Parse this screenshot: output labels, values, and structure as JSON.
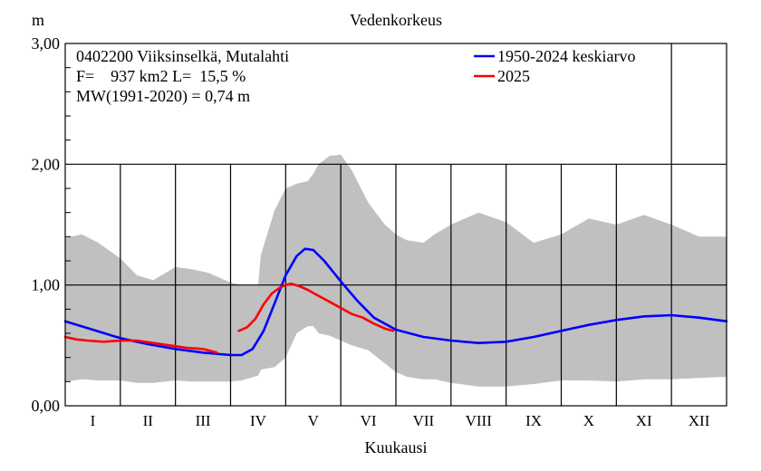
{
  "chart_data": {
    "type": "line",
    "title": "Vedenkorkeus",
    "xlabel": "Kuukausi",
    "ylabel": "m",
    "ylim": [
      0,
      3
    ],
    "y_ticks": [
      "0,00",
      "1,00",
      "2,00",
      "3,00"
    ],
    "y_tick_values": [
      0,
      1,
      2,
      3
    ],
    "months": [
      "I",
      "II",
      "III",
      "IV",
      "V",
      "VI",
      "VII",
      "VIII",
      "IX",
      "X",
      "XI",
      "XII"
    ],
    "xlim": [
      0,
      12
    ],
    "grid": true,
    "legend_position": "top-right",
    "info_lines": [
      "0402200 Viiksinselkä, Mutalahti",
      "F=    937 km2 L=  15,5 %",
      "MW(1991-2020) = 0,74 m"
    ],
    "colors": {
      "range_band": "#c0c0c0",
      "mean_line": "#0000ff",
      "current_line": "#ff0000",
      "frame": "#000000"
    },
    "range_band": {
      "x": [
        0,
        0.3,
        0.6,
        1.0,
        1.3,
        1.6,
        2.0,
        2.3,
        2.6,
        3.0,
        3.2,
        3.5,
        3.55,
        3.8,
        4.0,
        4.2,
        4.4,
        4.5,
        4.6,
        4.8,
        5.0,
        5.2,
        5.5,
        5.8,
        6.0,
        6.2,
        6.5,
        6.7,
        7.0,
        7.5,
        8.0,
        8.5,
        9.0,
        9.5,
        10.0,
        10.5,
        11.0,
        11.5,
        12.0
      ],
      "upper": [
        1.39,
        1.42,
        1.35,
        1.22,
        1.08,
        1.04,
        1.15,
        1.13,
        1.1,
        1.02,
        1.0,
        1.0,
        1.25,
        1.62,
        1.8,
        1.84,
        1.86,
        1.92,
        2.0,
        2.07,
        2.08,
        1.95,
        1.68,
        1.5,
        1.42,
        1.37,
        1.35,
        1.42,
        1.5,
        1.6,
        1.52,
        1.35,
        1.42,
        1.55,
        1.5,
        1.58,
        1.5,
        1.4,
        1.4
      ],
      "lower": [
        0.2,
        0.22,
        0.21,
        0.21,
        0.19,
        0.19,
        0.21,
        0.2,
        0.2,
        0.2,
        0.21,
        0.25,
        0.3,
        0.32,
        0.4,
        0.6,
        0.66,
        0.66,
        0.6,
        0.58,
        0.54,
        0.5,
        0.46,
        0.35,
        0.28,
        0.24,
        0.22,
        0.22,
        0.19,
        0.16,
        0.16,
        0.18,
        0.21,
        0.21,
        0.2,
        0.22,
        0.22,
        0.23,
        0.24
      ]
    },
    "series": [
      {
        "name": "1950-2024 keskiarvo",
        "color": "#0000ff",
        "x": [
          0,
          0.5,
          1.0,
          1.5,
          2.0,
          2.5,
          3.0,
          3.2,
          3.4,
          3.6,
          3.8,
          4.0,
          4.2,
          4.35,
          4.5,
          4.7,
          5.0,
          5.3,
          5.6,
          6.0,
          6.5,
          7.0,
          7.5,
          8.0,
          8.5,
          9.0,
          9.5,
          10.0,
          10.5,
          11.0,
          11.5,
          12.0
        ],
        "y": [
          0.7,
          0.63,
          0.56,
          0.51,
          0.47,
          0.44,
          0.42,
          0.42,
          0.47,
          0.62,
          0.85,
          1.08,
          1.24,
          1.3,
          1.29,
          1.2,
          1.03,
          0.87,
          0.73,
          0.63,
          0.57,
          0.54,
          0.52,
          0.53,
          0.57,
          0.62,
          0.67,
          0.71,
          0.74,
          0.75,
          0.73,
          0.7
        ]
      },
      {
        "name": "2025",
        "color": "#ff0000",
        "x": [
          0,
          0.2,
          0.4,
          0.7,
          1.0,
          1.3,
          1.6,
          1.9,
          2.2,
          2.5,
          2.75,
          null,
          3.15,
          3.3,
          3.45,
          3.6,
          3.75,
          3.9,
          4.0,
          4.1,
          4.25,
          4.4,
          4.6,
          4.8,
          5.0,
          5.2,
          5.4,
          5.6,
          5.8,
          5.95
        ],
        "y": [
          0.57,
          0.55,
          0.54,
          0.53,
          0.54,
          0.54,
          0.52,
          0.5,
          0.48,
          0.47,
          0.44,
          null,
          0.62,
          0.65,
          0.72,
          0.84,
          0.93,
          0.98,
          1.0,
          1.01,
          0.99,
          0.96,
          0.91,
          0.86,
          0.81,
          0.76,
          0.73,
          0.68,
          0.64,
          0.62
        ]
      }
    ]
  }
}
